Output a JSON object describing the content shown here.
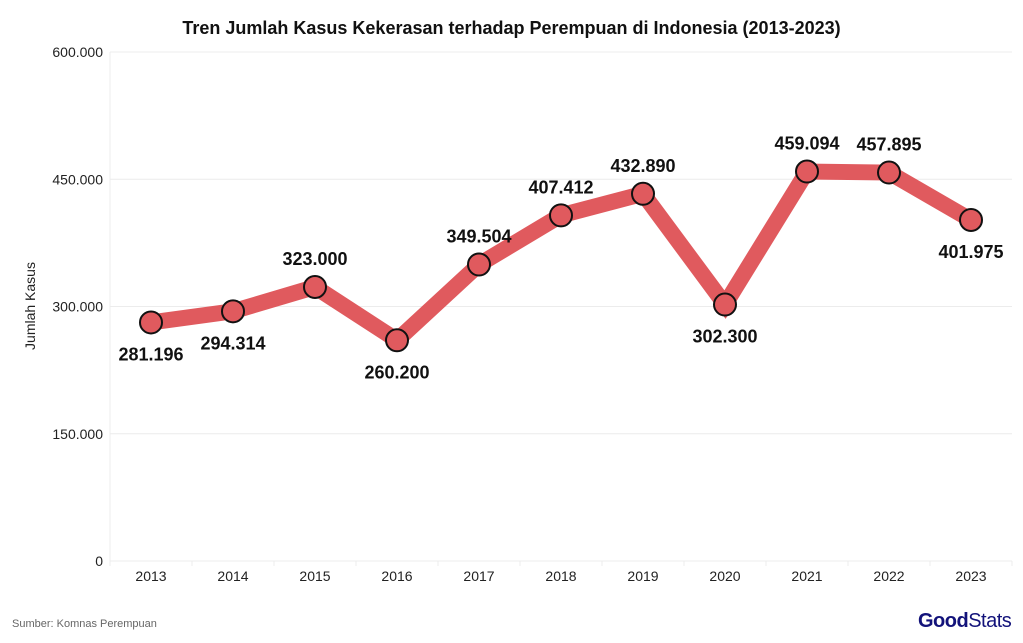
{
  "chart_data": {
    "type": "line",
    "title": "Tren Jumlah Kasus Kekerasan terhadap Perempuan di Indonesia (2013-2023)",
    "xlabel": "",
    "ylabel": "Jumlah Kasus",
    "categories": [
      "2013",
      "2014",
      "2015",
      "2016",
      "2017",
      "2018",
      "2019",
      "2020",
      "2021",
      "2022",
      "2023"
    ],
    "series": [
      {
        "name": "Jumlah Kasus",
        "values": [
          281196,
          294314,
          323000,
          260200,
          349504,
          407412,
          432890,
          302300,
          459094,
          457895,
          401975
        ],
        "color": "#e05a5e"
      }
    ],
    "data_labels": [
      "281.196",
      "294.314",
      "323.000",
      "260.200",
      "349.504",
      "407.412",
      "432.890",
      "302.300",
      "459.094",
      "457.895",
      "401.975"
    ],
    "label_positions": [
      "below",
      "below",
      "above",
      "below",
      "above",
      "above",
      "above",
      "below",
      "above",
      "above",
      "below"
    ],
    "yticks": [
      0,
      150000,
      300000,
      450000,
      600000
    ],
    "ytick_labels": [
      "0",
      "150.000",
      "300.000",
      "450.000",
      "600.000"
    ],
    "ylim": [
      0,
      600000
    ],
    "grid": true,
    "legend": "none"
  },
  "source": "Sumber: Komnas Perempuan",
  "logo": {
    "bold": "Good",
    "light": "Stats"
  }
}
